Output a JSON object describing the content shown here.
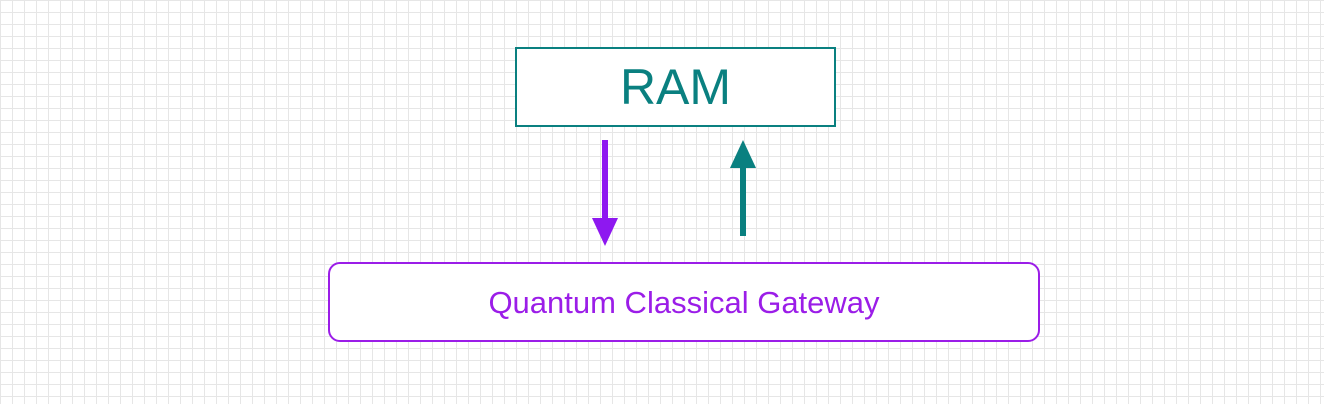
{
  "diagram": {
    "nodes": {
      "ram": {
        "label": "RAM",
        "color": "#0a8080"
      },
      "gateway": {
        "label": "Quantum Classical Gateway",
        "color": "#9b1de8"
      }
    },
    "edges": [
      {
        "from": "ram",
        "to": "gateway",
        "color": "#8e18f0"
      },
      {
        "from": "gateway",
        "to": "ram",
        "color": "#0a8080"
      }
    ]
  }
}
